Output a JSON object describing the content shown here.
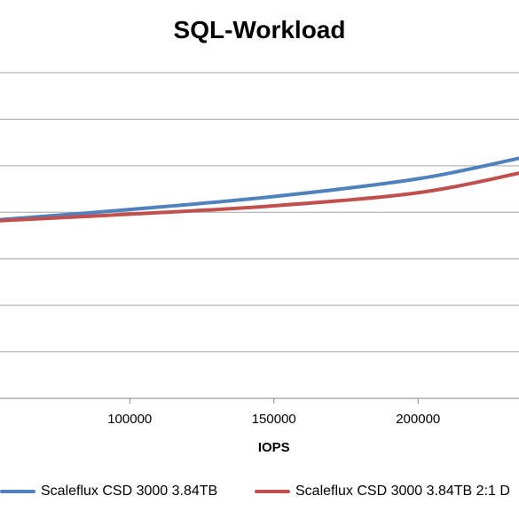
{
  "chart_data": {
    "type": "line",
    "title": "SQL-Workload",
    "xlabel": "IOPS",
    "ylabel": "",
    "xlim": [
      55000,
      235000
    ],
    "x_ticks": [
      100000,
      150000,
      200000
    ],
    "x_tick_labels": [
      "100000",
      "150000",
      "200000"
    ],
    "y_gridlines": 8,
    "grid": true,
    "legend_position": "bottom",
    "series": [
      {
        "name": "Scaleflux CSD 3000 3.84TB",
        "color": "#4F81BD",
        "x": [
          55000,
          100000,
          150000,
          200000,
          235000
        ],
        "y": [
          1.92,
          2.03,
          2.17,
          2.36,
          2.58
        ]
      },
      {
        "name": "Scaleflux CSD 3000 3.84TB 2:1 D",
        "color": "#C0504D",
        "x": [
          55000,
          100000,
          150000,
          200000,
          235000
        ],
        "y": [
          1.91,
          1.98,
          2.07,
          2.21,
          2.42
        ]
      }
    ]
  }
}
